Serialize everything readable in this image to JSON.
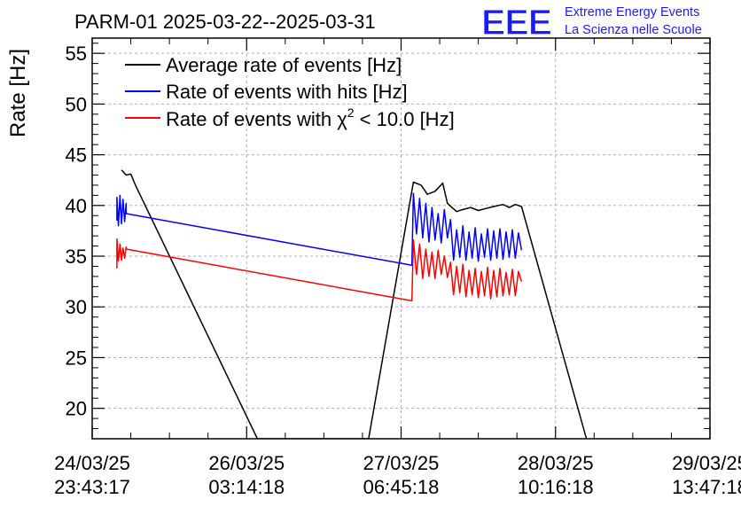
{
  "chart_data": {
    "type": "line",
    "title": "PARM-01 2025-03-22--2025-03-31",
    "ylabel": "Rate [Hz]",
    "xlabel": "",
    "ylim": [
      17,
      56.5
    ],
    "xlim": [
      0,
      4
    ],
    "grid": true,
    "legend_position": "top-left",
    "logo": {
      "mark": "EEE",
      "line1": "Extreme Energy Events",
      "line2": "La Scienza nelle Scuole"
    },
    "y_ticks": [
      20,
      25,
      30,
      35,
      40,
      45,
      50,
      55
    ],
    "x_ticks": [
      {
        "x": 0,
        "date": "24/03/25",
        "time": "23:43:17"
      },
      {
        "x": 1,
        "date": "26/03/25",
        "time": "03:14:18"
      },
      {
        "x": 2,
        "date": "27/03/25",
        "time": "06:45:18"
      },
      {
        "x": 3,
        "date": "28/03/25",
        "time": "10:16:18"
      },
      {
        "x": 4,
        "date": "29/03/25",
        "time": "13:47:18"
      }
    ],
    "legend": [
      {
        "label_pre": "Average rate of events [Hz]",
        "sup": "",
        "label_post": "",
        "color": "#000000"
      },
      {
        "label_pre": "Rate of events with hits [Hz]",
        "sup": "",
        "label_post": "",
        "color": "#0000ff"
      },
      {
        "label_pre": "Rate of events with χ",
        "sup": "2",
        "label_post": " < 10.0 [Hz]",
        "color": "#ff0000"
      }
    ],
    "series": [
      {
        "name": "Average rate of events [Hz]",
        "color": "#000000",
        "points": [
          [
            0.19,
            43.5
          ],
          [
            0.22,
            43.0
          ],
          [
            0.25,
            43.1
          ],
          [
            0.28,
            42.0
          ],
          [
            1.07,
            17.0
          ],
          [
            1.79,
            17.0
          ],
          [
            2.08,
            42.3
          ],
          [
            2.13,
            42.0
          ],
          [
            2.17,
            41.1
          ],
          [
            2.22,
            41.4
          ],
          [
            2.27,
            42.2
          ],
          [
            2.3,
            40.2
          ],
          [
            2.36,
            39.4
          ],
          [
            2.4,
            39.6
          ],
          [
            2.45,
            39.8
          ],
          [
            2.5,
            39.5
          ],
          [
            2.55,
            39.7
          ],
          [
            2.6,
            39.9
          ],
          [
            2.66,
            40.1
          ],
          [
            2.7,
            39.8
          ],
          [
            2.74,
            40.1
          ],
          [
            2.78,
            39.9
          ],
          [
            3.2,
            17.0
          ]
        ]
      },
      {
        "name": "Rate of events with hits [Hz]",
        "color": "#0000ff",
        "points": [
          [
            0.16,
            38.5
          ],
          [
            0.16,
            40.8
          ],
          [
            0.17,
            38.0
          ],
          [
            0.18,
            41.0
          ],
          [
            0.19,
            38.2
          ],
          [
            0.2,
            40.6
          ],
          [
            0.21,
            38.4
          ],
          [
            0.22,
            40.2
          ],
          [
            0.22,
            39.2
          ],
          [
            2.07,
            34.1
          ],
          [
            2.08,
            41.2
          ],
          [
            2.1,
            37.2
          ],
          [
            2.12,
            40.7
          ],
          [
            2.14,
            36.8
          ],
          [
            2.16,
            40.2
          ],
          [
            2.18,
            36.4
          ],
          [
            2.2,
            39.8
          ],
          [
            2.22,
            36.6
          ],
          [
            2.24,
            39.2
          ],
          [
            2.26,
            36.3
          ],
          [
            2.28,
            39.6
          ],
          [
            2.3,
            36.8
          ],
          [
            2.32,
            38.6
          ],
          [
            2.34,
            34.6
          ],
          [
            2.36,
            37.6
          ],
          [
            2.38,
            34.9
          ],
          [
            2.4,
            38.0
          ],
          [
            2.42,
            34.6
          ],
          [
            2.44,
            37.4
          ],
          [
            2.46,
            34.8
          ],
          [
            2.48,
            37.8
          ],
          [
            2.5,
            34.5
          ],
          [
            2.52,
            37.2
          ],
          [
            2.54,
            34.9
          ],
          [
            2.56,
            37.7
          ],
          [
            2.58,
            34.6
          ],
          [
            2.6,
            37.5
          ],
          [
            2.62,
            34.8
          ],
          [
            2.64,
            37.7
          ],
          [
            2.66,
            34.7
          ],
          [
            2.68,
            37.4
          ],
          [
            2.7,
            34.9
          ],
          [
            2.72,
            37.6
          ],
          [
            2.74,
            34.8
          ],
          [
            2.76,
            37.3
          ],
          [
            2.78,
            35.6
          ]
        ]
      },
      {
        "name": "Rate of events with χ2 < 10.0 [Hz]",
        "color": "#ff0000",
        "points": [
          [
            0.16,
            33.8
          ],
          [
            0.16,
            36.7
          ],
          [
            0.17,
            34.5
          ],
          [
            0.18,
            36.2
          ],
          [
            0.19,
            34.6
          ],
          [
            0.2,
            35.8
          ],
          [
            0.21,
            34.8
          ],
          [
            0.22,
            35.9
          ],
          [
            0.22,
            35.7
          ],
          [
            2.07,
            30.6
          ],
          [
            2.08,
            36.6
          ],
          [
            2.1,
            33.2
          ],
          [
            2.12,
            36.2
          ],
          [
            2.14,
            32.8
          ],
          [
            2.16,
            35.7
          ],
          [
            2.18,
            33.0
          ],
          [
            2.2,
            35.4
          ],
          [
            2.22,
            32.8
          ],
          [
            2.24,
            35.6
          ],
          [
            2.26,
            33.2
          ],
          [
            2.28,
            35.0
          ],
          [
            2.3,
            32.9
          ],
          [
            2.32,
            34.4
          ],
          [
            2.34,
            31.2
          ],
          [
            2.36,
            34.0
          ],
          [
            2.38,
            31.4
          ],
          [
            2.4,
            34.2
          ],
          [
            2.42,
            31.0
          ],
          [
            2.44,
            33.6
          ],
          [
            2.46,
            31.2
          ],
          [
            2.48,
            33.8
          ],
          [
            2.5,
            30.9
          ],
          [
            2.52,
            33.5
          ],
          [
            2.54,
            31.1
          ],
          [
            2.56,
            33.9
          ],
          [
            2.58,
            30.8
          ],
          [
            2.6,
            33.6
          ],
          [
            2.62,
            31.0
          ],
          [
            2.64,
            33.8
          ],
          [
            2.66,
            31.1
          ],
          [
            2.68,
            33.4
          ],
          [
            2.7,
            31.2
          ],
          [
            2.72,
            33.7
          ],
          [
            2.74,
            31.1
          ],
          [
            2.76,
            33.5
          ],
          [
            2.78,
            32.5
          ]
        ]
      }
    ]
  }
}
